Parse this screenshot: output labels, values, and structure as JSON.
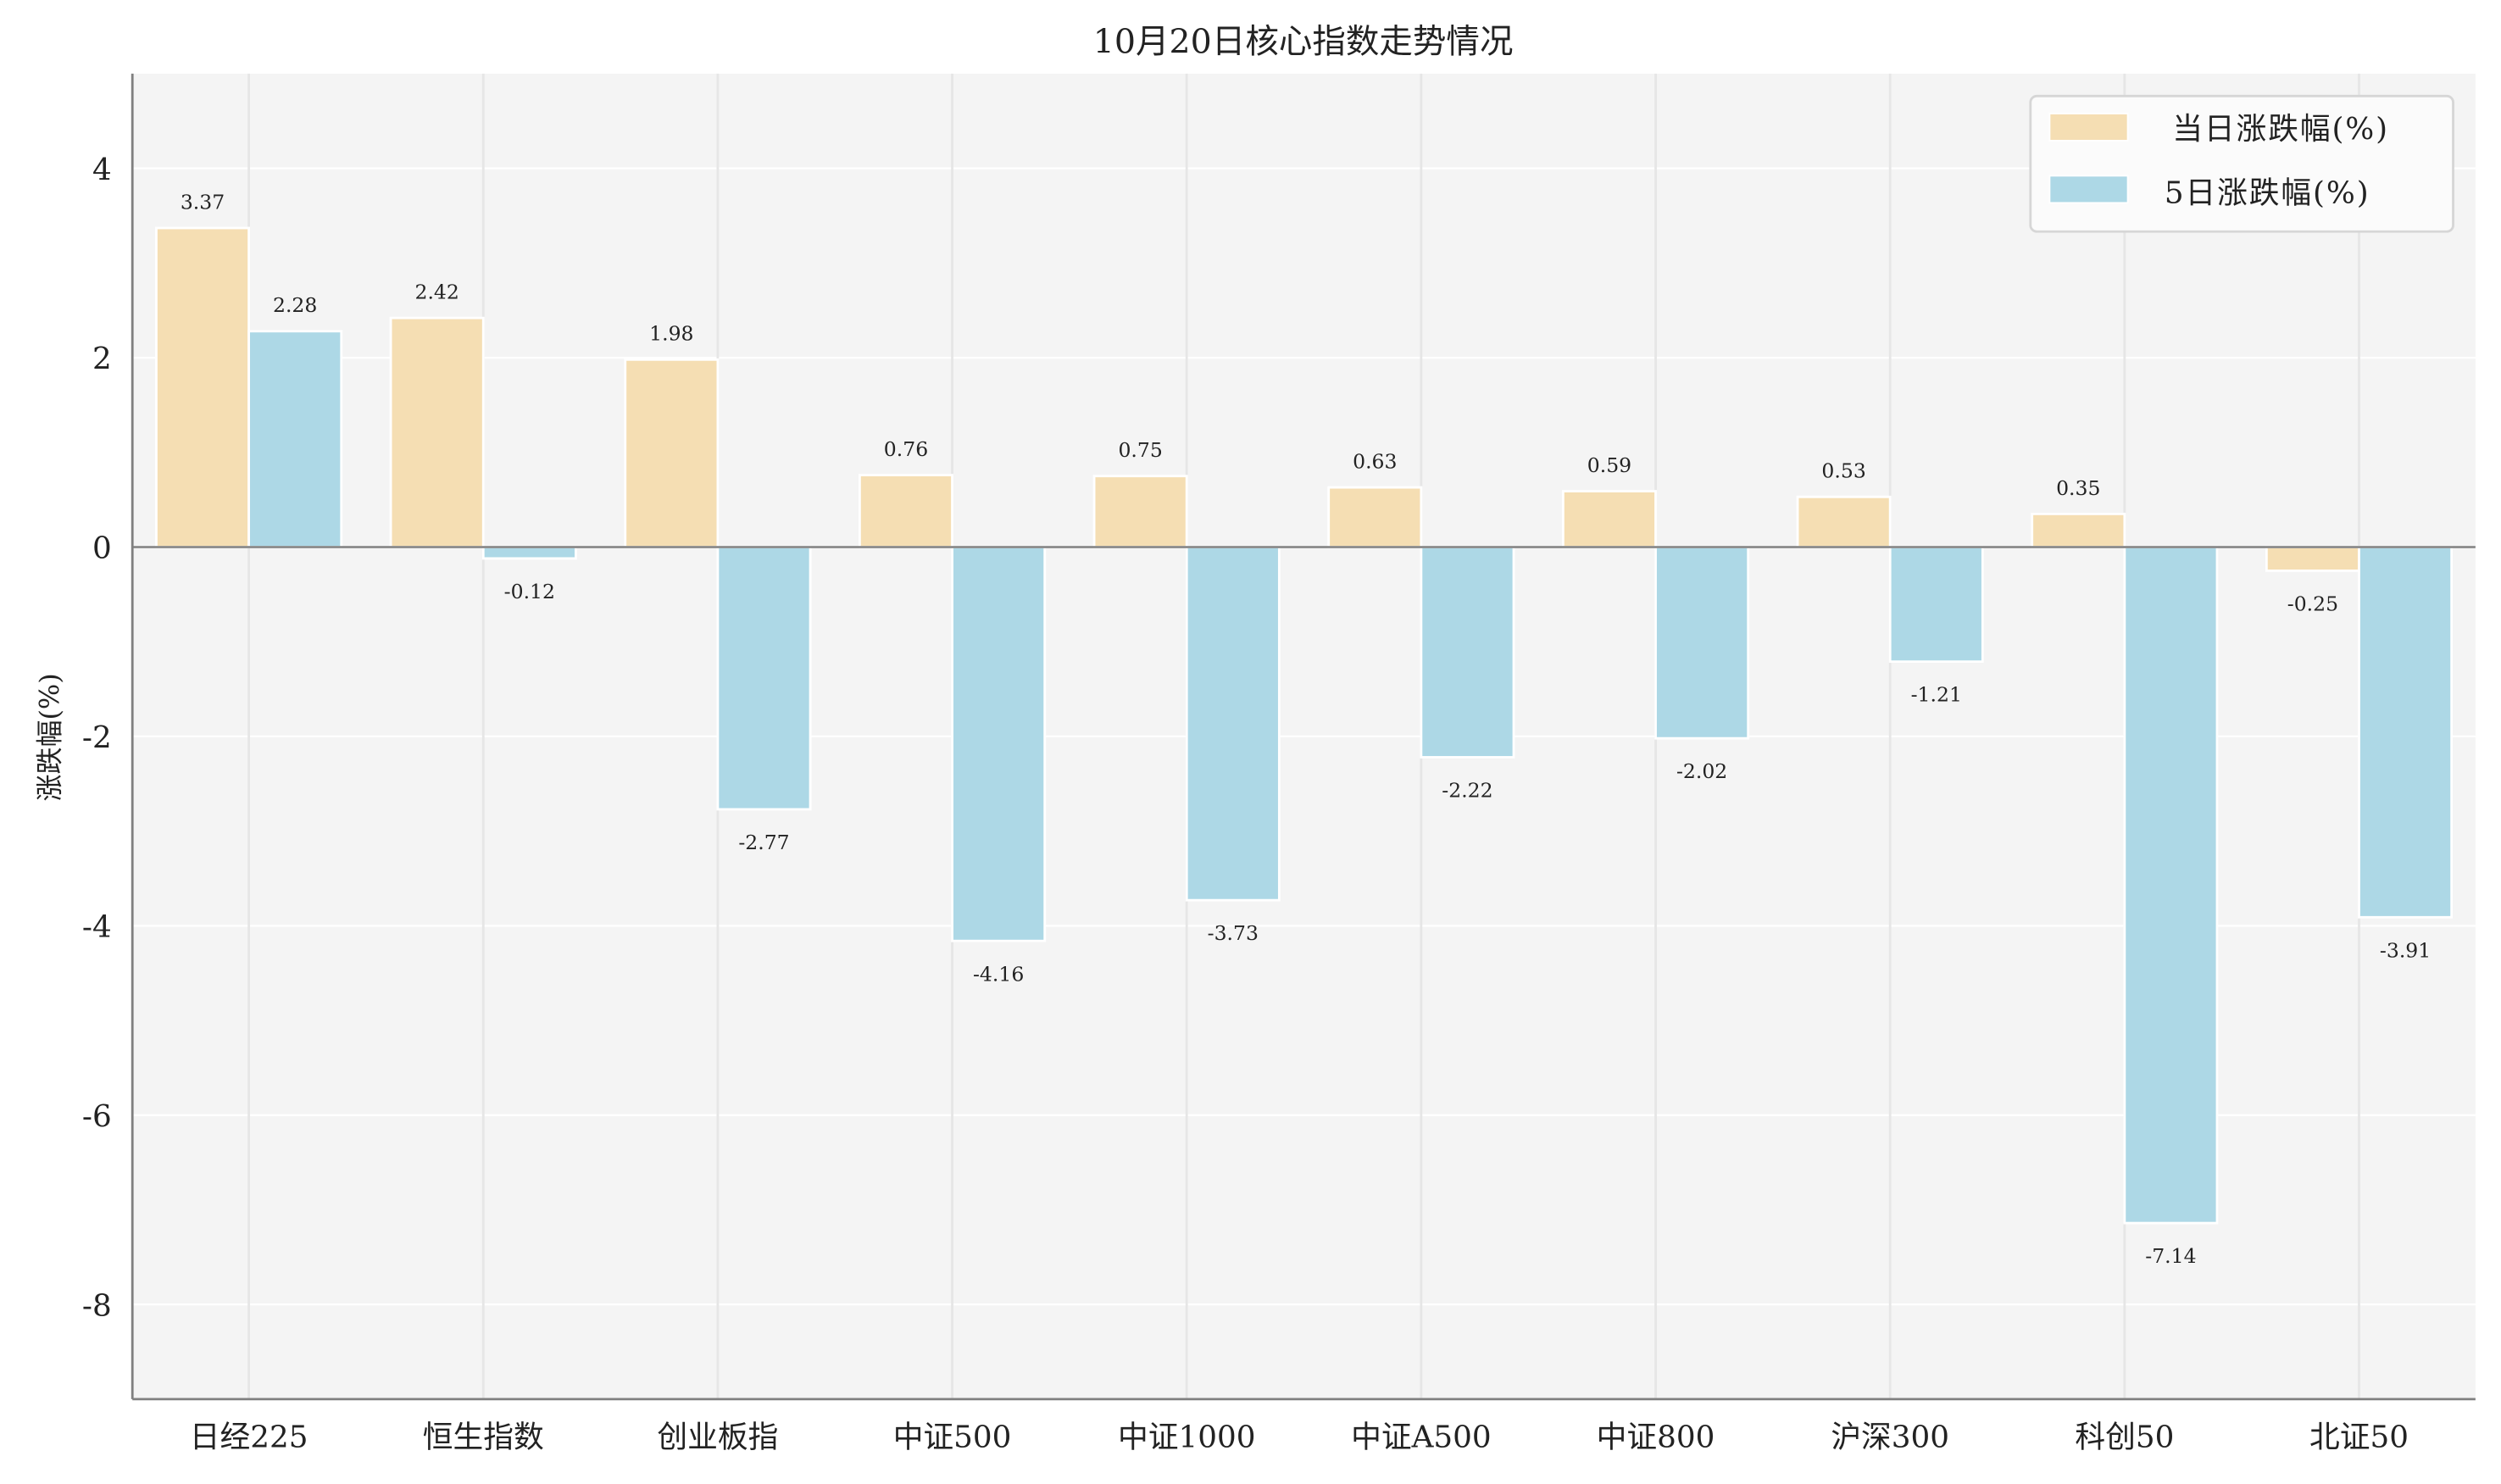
{
  "chart_data": {
    "type": "bar",
    "title": "10月20日核心指数走势情况",
    "xlabel": "",
    "ylabel": "涨跌幅(%)",
    "ylim": [
      -9,
      5
    ],
    "yticks": [
      4,
      2,
      0,
      -2,
      -4,
      -6,
      -8
    ],
    "grid": true,
    "legend_position": "top-right",
    "categories": [
      "日经225",
      "恒生指数",
      "创业板指",
      "中证500",
      "中证1000",
      "中证A500",
      "中证800",
      "沪深300",
      "科创50",
      "北证50"
    ],
    "series": [
      {
        "name": "当日涨跌幅(%)",
        "color": "#F5DEB3",
        "values": [
          3.37,
          2.42,
          1.98,
          0.76,
          0.75,
          0.63,
          0.59,
          0.53,
          0.35,
          -0.25
        ]
      },
      {
        "name": "5日涨跌幅(%)",
        "color": "#ADD8E6",
        "values": [
          2.28,
          -0.12,
          -2.77,
          -4.16,
          -3.73,
          -2.22,
          -2.02,
          -1.21,
          -7.14,
          -3.91
        ]
      }
    ],
    "background": "#F4F4F4"
  }
}
